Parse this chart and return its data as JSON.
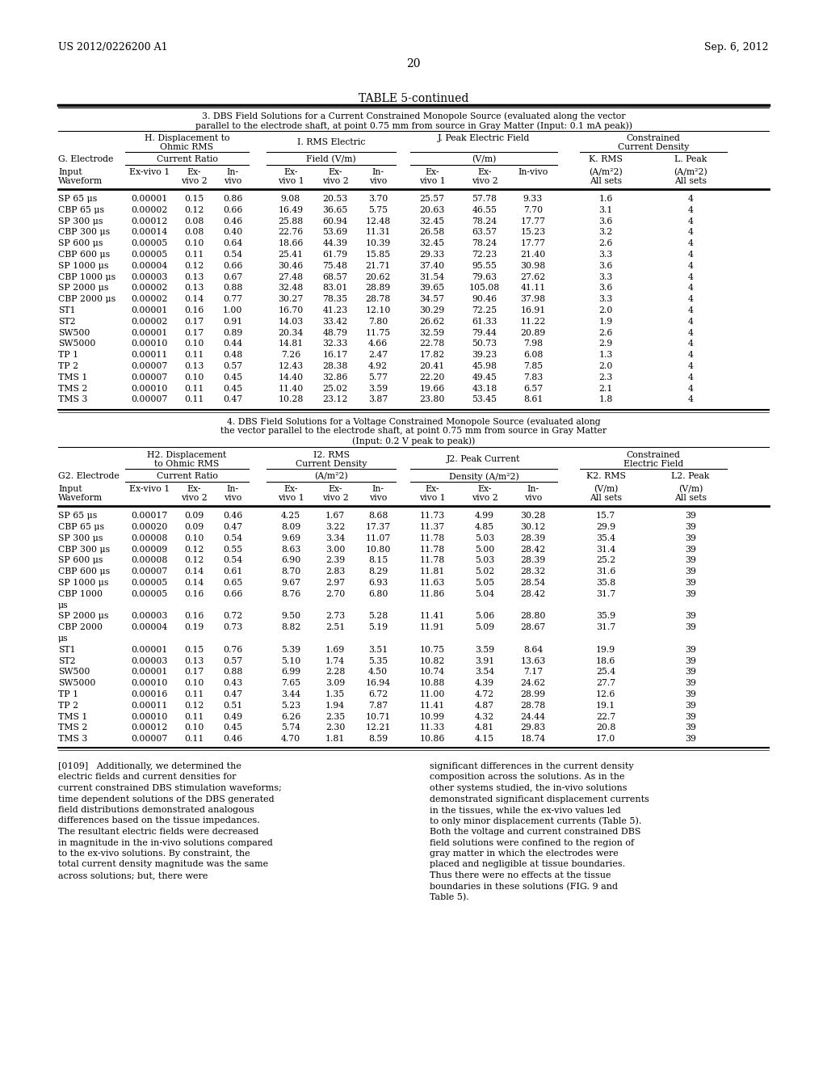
{
  "header_left": "US 2012/0226200 A1",
  "header_right": "Sep. 6, 2012",
  "page_number": "20",
  "table_title": "TABLE 5-continued",
  "section3_data": [
    [
      "SP 65 μs",
      "0.00001",
      "0.15",
      "0.86",
      "9.08",
      "20.53",
      "3.70",
      "25.57",
      "57.78",
      "9.33",
      "1.6",
      "4"
    ],
    [
      "CBP 65 μs",
      "0.00002",
      "0.12",
      "0.66",
      "16.49",
      "36.65",
      "5.75",
      "20.63",
      "46.55",
      "7.70",
      "3.1",
      "4"
    ],
    [
      "SP 300 μs",
      "0.00012",
      "0.08",
      "0.46",
      "25.88",
      "60.94",
      "12.48",
      "32.45",
      "78.24",
      "17.77",
      "3.6",
      "4"
    ],
    [
      "CBP 300 μs",
      "0.00014",
      "0.08",
      "0.40",
      "22.76",
      "53.69",
      "11.31",
      "26.58",
      "63.57",
      "15.23",
      "3.2",
      "4"
    ],
    [
      "SP 600 μs",
      "0.00005",
      "0.10",
      "0.64",
      "18.66",
      "44.39",
      "10.39",
      "32.45",
      "78.24",
      "17.77",
      "2.6",
      "4"
    ],
    [
      "CBP 600 μs",
      "0.00005",
      "0.11",
      "0.54",
      "25.41",
      "61.79",
      "15.85",
      "29.33",
      "72.23",
      "21.40",
      "3.3",
      "4"
    ],
    [
      "SP 1000 μs",
      "0.00004",
      "0.12",
      "0.66",
      "30.46",
      "75.48",
      "21.71",
      "37.40",
      "95.55",
      "30.98",
      "3.6",
      "4"
    ],
    [
      "CBP 1000 μs",
      "0.00003",
      "0.13",
      "0.67",
      "27.48",
      "68.57",
      "20.62",
      "31.54",
      "79.63",
      "27.62",
      "3.3",
      "4"
    ],
    [
      "SP 2000 μs",
      "0.00002",
      "0.13",
      "0.88",
      "32.48",
      "83.01",
      "28.89",
      "39.65",
      "105.08",
      "41.11",
      "3.6",
      "4"
    ],
    [
      "CBP 2000 μs",
      "0.00002",
      "0.14",
      "0.77",
      "30.27",
      "78.35",
      "28.78",
      "34.57",
      "90.46",
      "37.98",
      "3.3",
      "4"
    ],
    [
      "ST1",
      "0.00001",
      "0.16",
      "1.00",
      "16.70",
      "41.23",
      "12.10",
      "30.29",
      "72.25",
      "16.91",
      "2.0",
      "4"
    ],
    [
      "ST2",
      "0.00002",
      "0.17",
      "0.91",
      "14.03",
      "33.42",
      "7.80",
      "26.62",
      "61.33",
      "11.22",
      "1.9",
      "4"
    ],
    [
      "SW500",
      "0.00001",
      "0.17",
      "0.89",
      "20.34",
      "48.79",
      "11.75",
      "32.59",
      "79.44",
      "20.89",
      "2.6",
      "4"
    ],
    [
      "SW5000",
      "0.00010",
      "0.10",
      "0.44",
      "14.81",
      "32.33",
      "4.66",
      "22.78",
      "50.73",
      "7.98",
      "2.9",
      "4"
    ],
    [
      "TP 1",
      "0.00011",
      "0.11",
      "0.48",
      "7.26",
      "16.17",
      "2.47",
      "17.82",
      "39.23",
      "6.08",
      "1.3",
      "4"
    ],
    [
      "TP 2",
      "0.00007",
      "0.13",
      "0.57",
      "12.43",
      "28.38",
      "4.92",
      "20.41",
      "45.98",
      "7.85",
      "2.0",
      "4"
    ],
    [
      "TMS 1",
      "0.00007",
      "0.10",
      "0.45",
      "14.40",
      "32.86",
      "5.77",
      "22.20",
      "49.45",
      "7.83",
      "2.3",
      "4"
    ],
    [
      "TMS 2",
      "0.00010",
      "0.11",
      "0.45",
      "11.40",
      "25.02",
      "3.59",
      "19.66",
      "43.18",
      "6.57",
      "2.1",
      "4"
    ],
    [
      "TMS 3",
      "0.00007",
      "0.11",
      "0.47",
      "10.28",
      "23.12",
      "3.87",
      "23.80",
      "53.45",
      "8.61",
      "1.8",
      "4"
    ]
  ],
  "section4_data_rows": [
    {
      "label": "SP 65 μs",
      "continuation": false,
      "vals": [
        "0.00017",
        "0.09",
        "0.46",
        "4.25",
        "1.67",
        "8.68",
        "11.73",
        "4.99",
        "30.28",
        "15.7",
        "39"
      ]
    },
    {
      "label": "CBP 65 μs",
      "continuation": false,
      "vals": [
        "0.00020",
        "0.09",
        "0.47",
        "8.09",
        "3.22",
        "17.37",
        "11.37",
        "4.85",
        "30.12",
        "29.9",
        "39"
      ]
    },
    {
      "label": "SP 300 μs",
      "continuation": false,
      "vals": [
        "0.00008",
        "0.10",
        "0.54",
        "9.69",
        "3.34",
        "11.07",
        "11.78",
        "5.03",
        "28.39",
        "35.4",
        "39"
      ]
    },
    {
      "label": "CBP 300 μs",
      "continuation": false,
      "vals": [
        "0.00009",
        "0.12",
        "0.55",
        "8.63",
        "3.00",
        "10.80",
        "11.78",
        "5.00",
        "28.42",
        "31.4",
        "39"
      ]
    },
    {
      "label": "SP 600 μs",
      "continuation": false,
      "vals": [
        "0.00008",
        "0.12",
        "0.54",
        "6.90",
        "2.39",
        "8.15",
        "11.78",
        "5.03",
        "28.39",
        "25.2",
        "39"
      ]
    },
    {
      "label": "CBP 600 μs",
      "continuation": false,
      "vals": [
        "0.00007",
        "0.14",
        "0.61",
        "8.70",
        "2.83",
        "8.29",
        "11.81",
        "5.02",
        "28.32",
        "31.6",
        "39"
      ]
    },
    {
      "label": "SP 1000 μs",
      "continuation": false,
      "vals": [
        "0.00005",
        "0.14",
        "0.65",
        "9.67",
        "2.97",
        "6.93",
        "11.63",
        "5.05",
        "28.54",
        "35.8",
        "39"
      ]
    },
    {
      "label": "CBP 1000",
      "continuation": false,
      "vals": [
        "0.00005",
        "0.16",
        "0.66",
        "8.76",
        "2.70",
        "6.80",
        "11.86",
        "5.04",
        "28.42",
        "31.7",
        "39"
      ]
    },
    {
      "label": "μs",
      "continuation": true,
      "vals": []
    },
    {
      "label": "SP 2000 μs",
      "continuation": false,
      "vals": [
        "0.00003",
        "0.16",
        "0.72",
        "9.50",
        "2.73",
        "5.28",
        "11.41",
        "5.06",
        "28.80",
        "35.9",
        "39"
      ]
    },
    {
      "label": "CBP 2000",
      "continuation": false,
      "vals": [
        "0.00004",
        "0.19",
        "0.73",
        "8.82",
        "2.51",
        "5.19",
        "11.91",
        "5.09",
        "28.67",
        "31.7",
        "39"
      ]
    },
    {
      "label": "μs",
      "continuation": true,
      "vals": []
    },
    {
      "label": "ST1",
      "continuation": false,
      "vals": [
        "0.00001",
        "0.15",
        "0.76",
        "5.39",
        "1.69",
        "3.51",
        "10.75",
        "3.59",
        "8.64",
        "19.9",
        "39"
      ]
    },
    {
      "label": "ST2",
      "continuation": false,
      "vals": [
        "0.00003",
        "0.13",
        "0.57",
        "5.10",
        "1.74",
        "5.35",
        "10.82",
        "3.91",
        "13.63",
        "18.6",
        "39"
      ]
    },
    {
      "label": "SW500",
      "continuation": false,
      "vals": [
        "0.00001",
        "0.17",
        "0.88",
        "6.99",
        "2.28",
        "4.50",
        "10.74",
        "3.54",
        "7.17",
        "25.4",
        "39"
      ]
    },
    {
      "label": "SW5000",
      "continuation": false,
      "vals": [
        "0.00010",
        "0.10",
        "0.43",
        "7.65",
        "3.09",
        "16.94",
        "10.88",
        "4.39",
        "24.62",
        "27.7",
        "39"
      ]
    },
    {
      "label": "TP 1",
      "continuation": false,
      "vals": [
        "0.00016",
        "0.11",
        "0.47",
        "3.44",
        "1.35",
        "6.72",
        "11.00",
        "4.72",
        "28.99",
        "12.6",
        "39"
      ]
    },
    {
      "label": "TP 2",
      "continuation": false,
      "vals": [
        "0.00011",
        "0.12",
        "0.51",
        "5.23",
        "1.94",
        "7.87",
        "11.41",
        "4.87",
        "28.78",
        "19.1",
        "39"
      ]
    },
    {
      "label": "TMS 1",
      "continuation": false,
      "vals": [
        "0.00010",
        "0.11",
        "0.49",
        "6.26",
        "2.35",
        "10.71",
        "10.99",
        "4.32",
        "24.44",
        "22.7",
        "39"
      ]
    },
    {
      "label": "TMS 2",
      "continuation": false,
      "vals": [
        "0.00012",
        "0.10",
        "0.45",
        "5.74",
        "2.30",
        "12.21",
        "11.33",
        "4.81",
        "29.83",
        "20.8",
        "39"
      ]
    },
    {
      "label": "TMS 3",
      "continuation": false,
      "vals": [
        "0.00007",
        "0.11",
        "0.46",
        "4.70",
        "1.81",
        "8.59",
        "10.86",
        "4.15",
        "18.74",
        "17.0",
        "39"
      ]
    }
  ],
  "para1": "[0109]   Additionally, we determined the electric fields and current densities for current constrained DBS stimulation waveforms; time dependent solutions of the DBS generated field distributions demonstrated analogous differences based on the tissue impedances. The resultant electric fields were decreased in magnitude in the in-vivo solutions compared to the ex-vivo solutions. By constraint, the total current density magnitude was the same across solutions; but, there were",
  "para2": "significant differences in the current density composition across the solutions. As in the other systems studied, the in-vivo solutions demonstrated significant displacement currents in the tissues, while the ex-vivo values led to only minor displacement currents (Table 5). Both the voltage and current constrained DBS field solutions were confined to the region of gray matter in which the electrodes were placed and negligible at tissue boundaries. Thus there were no effects at the tissue boundaries in these solutions (FIG. 9 and Table 5)."
}
